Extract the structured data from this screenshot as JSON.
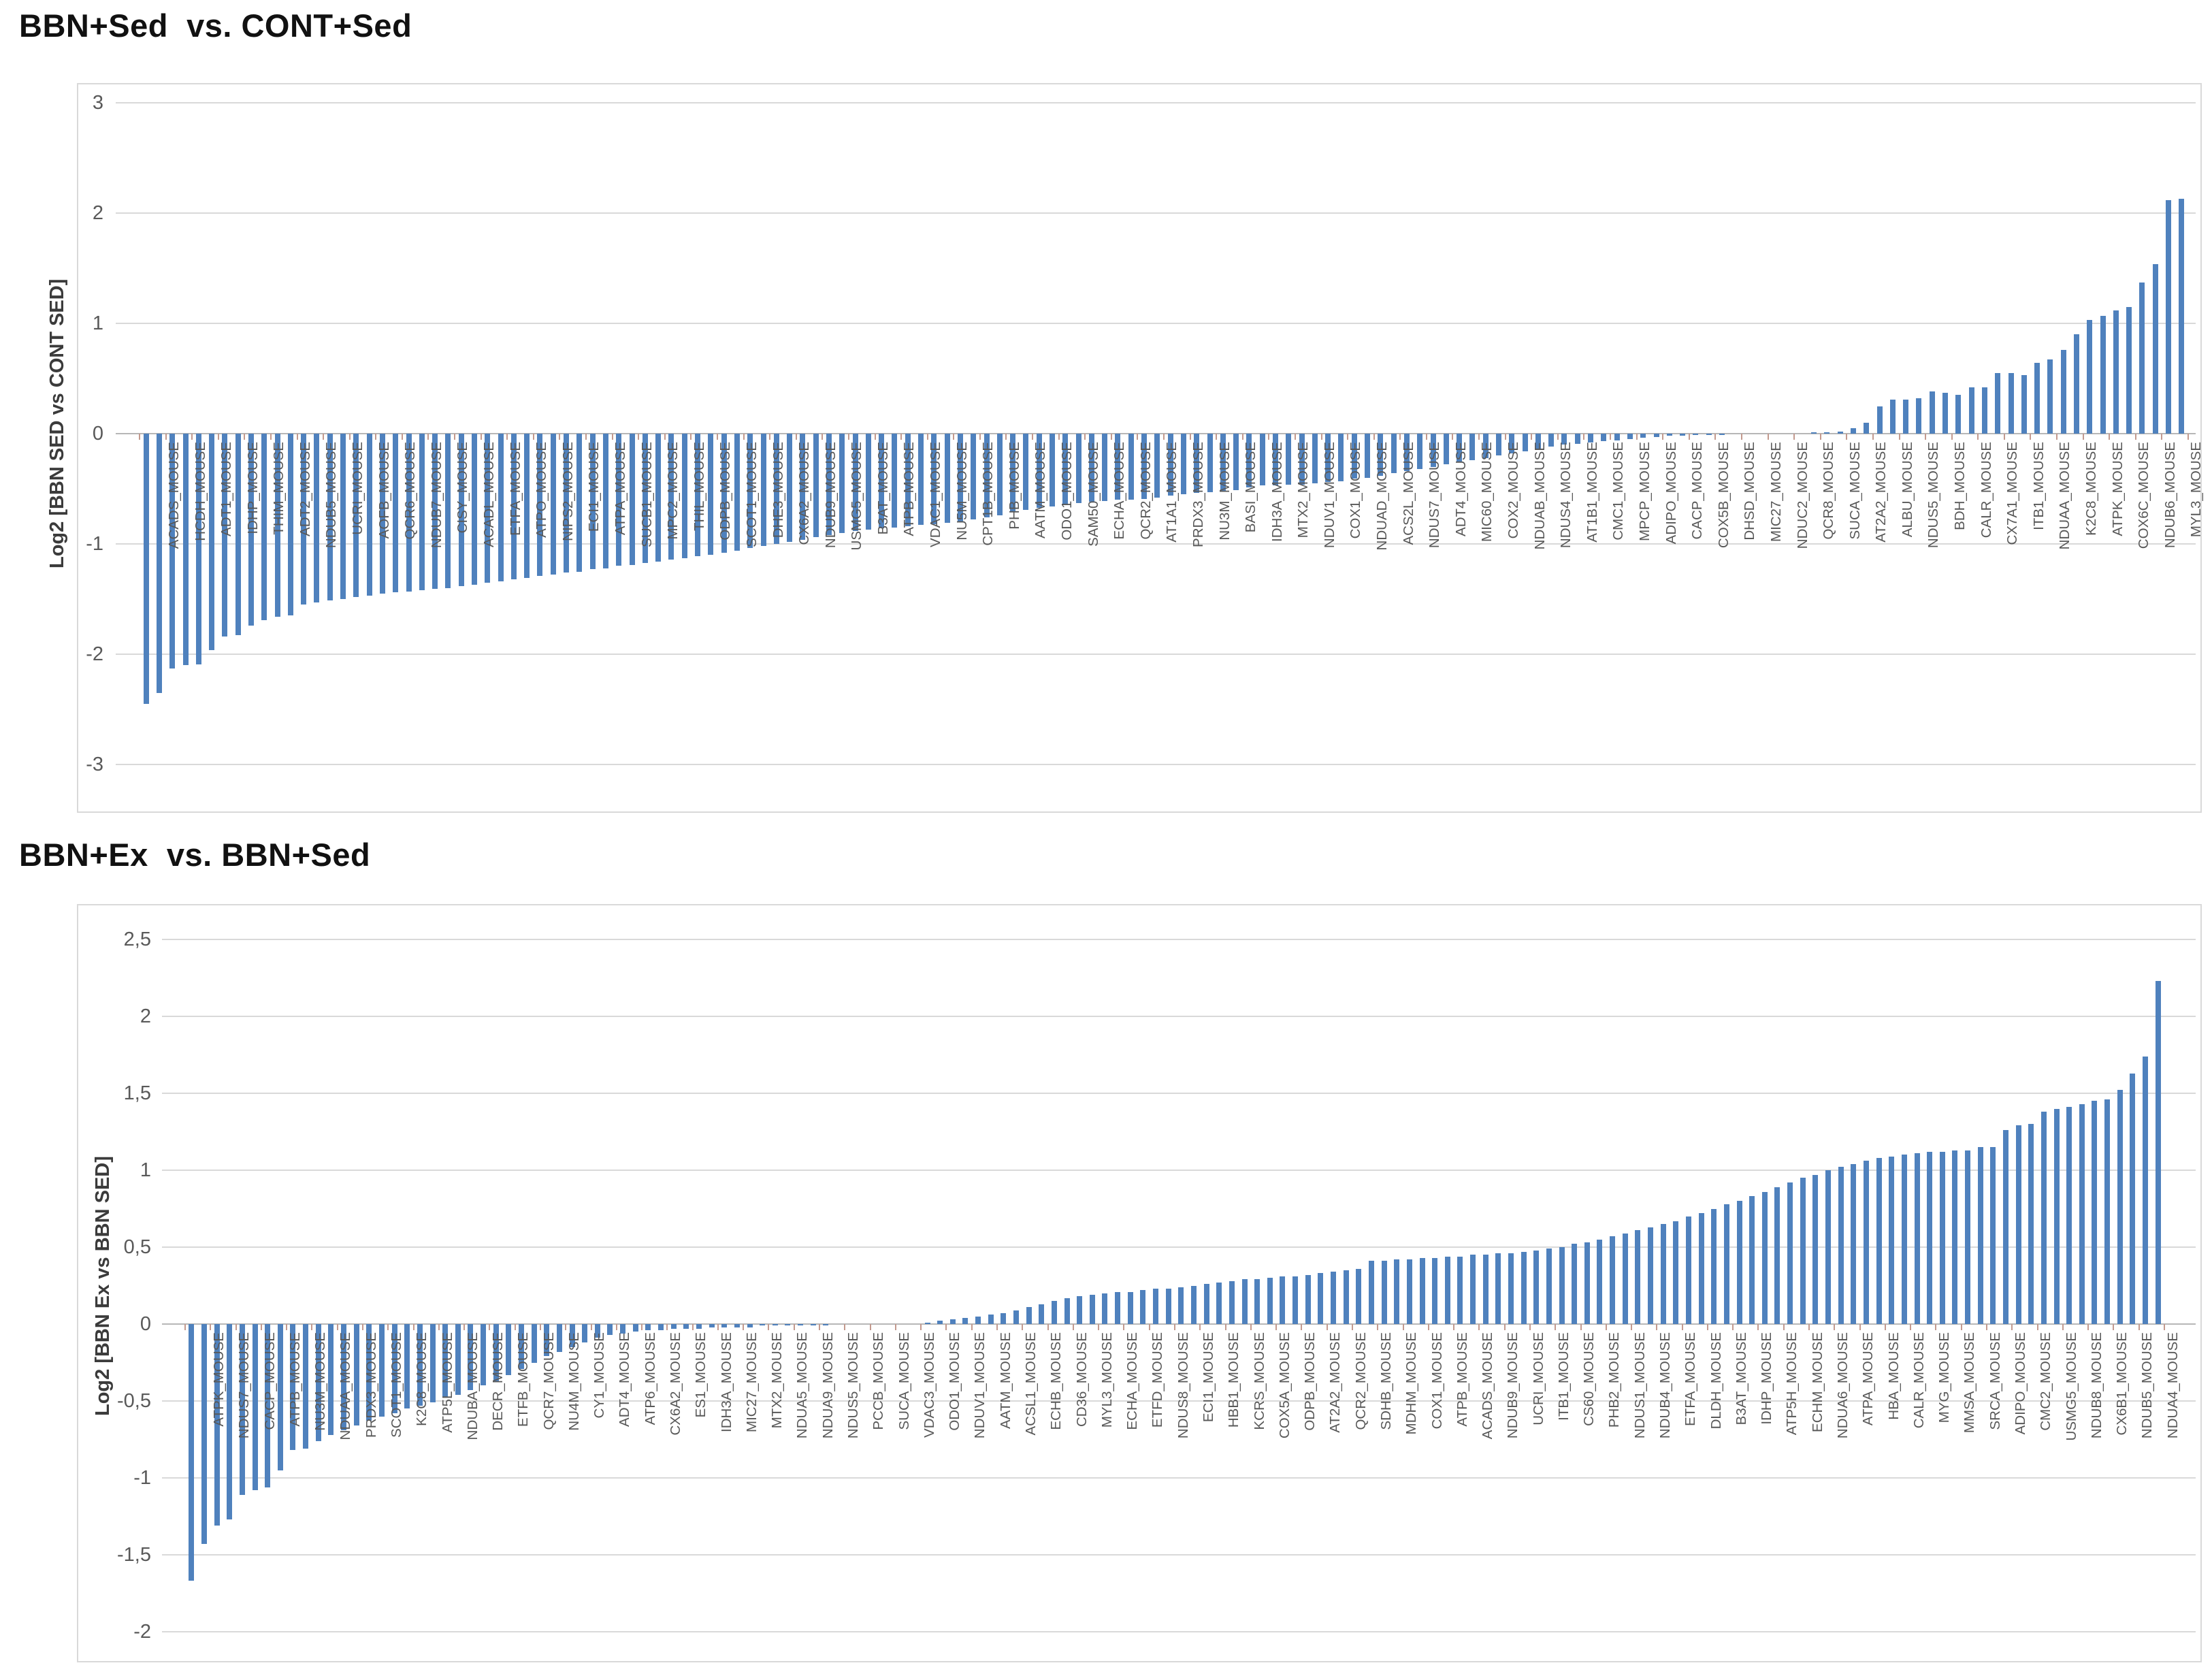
{
  "chart_data": [
    {
      "type": "bar",
      "title": "BBN+Sed  vs. CONT+Sed",
      "ylabel": "Log2 [BBN SED vs  CONT SED]",
      "xlabel": "",
      "ylim": [
        -3,
        3
      ],
      "grid": true,
      "legend": "none",
      "bar_color": "#4f81bd",
      "label_color": "#595959",
      "decimal_separator": ".",
      "labels_on_alternate_bars": true,
      "y_ticks": [
        {
          "label": "3",
          "v": 3
        },
        {
          "label": "2",
          "v": 2
        },
        {
          "label": "1",
          "v": 1
        },
        {
          "label": "0",
          "v": 0
        },
        {
          "label": "-1",
          "v": -1
        },
        {
          "label": "-2",
          "v": -2
        },
        {
          "label": "-3",
          "v": -3
        }
      ],
      "categories": [
        "ACADS_MOUSE",
        "HCDH_MOUSE",
        "ADT1_MOUSE",
        "IDHP_MOUSE",
        "THIM_MOUSE",
        "ADT2_MOUSE",
        "NDUB5_MOUSE",
        "UCRI_MOUSE",
        "AOFB_MOUSE",
        "QCR6_MOUSE",
        "NDUB7_MOUSE",
        "CISY_MOUSE",
        "ACADL_MOUSE",
        "ETFA_MOUSE",
        "ATPO_MOUSE",
        "NIPS2_MOUSE",
        "ECI1_MOUSE",
        "ATPA_MOUSE",
        "SUCB1_MOUSE",
        "MPC2_MOUSE",
        "THIL_MOUSE",
        "ODPB_MOUSE",
        "SCOT1_MOUSE",
        "DHE3_MOUSE",
        "CX6A2_MOUSE",
        "NDUB9_MOUSE",
        "USMG5_MOUSE",
        "B3AT_MOUSE",
        "ATPB_MOUSE",
        "VDAC1_MOUSE",
        "NU5M_MOUSE",
        "CPT1B_MOUSE",
        "PHB_MOUSE",
        "AATM_MOUSE",
        "ODO1_MOUSE",
        "SAM50_MOUSE",
        "ECHA_MOUSE",
        "QCR2_MOUSE",
        "AT1A1_MOUSE",
        "PRDX3_MOUSE",
        "NU3M_MOUSE",
        "BASI_MOUSE",
        "IDH3A_MOUSE",
        "MTX2_MOUSE",
        "NDUV1_MOUSE",
        "COX1_MOUSE",
        "NDUAD_MOUSE",
        "ACS2L_MOUSE",
        "NDUS7_MOUSE",
        "ADT4_MOUSE",
        "MIC60_MOUSE",
        "COX2_MOUSE",
        "NDUAB_MOUSE",
        "NDUS4_MOUSE",
        "AT1B1_MOUSE",
        "CMC1_MOUSE",
        "MPCP_MOUSE",
        "ADIPO_MOUSE",
        "CACP_MOUSE",
        "COX5B_MOUSE",
        "DHSD_MOUSE",
        "MIC27_MOUSE",
        "NDUC2_MOUSE",
        "QCR8_MOUSE",
        "SUCA_MOUSE",
        "AT2A2_MOUSE",
        "ALBU_MOUSE",
        "NDUS5_MOUSE",
        "BDH_MOUSE",
        "CALR_MOUSE",
        "CX7A1_MOUSE",
        "ITB1_MOUSE",
        "NDUAA_MOUSE",
        "K2C8_MOUSE",
        "ATPK_MOUSE",
        "COX6C_MOUSE",
        "NDUB6_MOUSE",
        "MYL3_MOUSE"
      ],
      "values": [
        -2.45,
        -2.35,
        -2.13,
        -2.1,
        -2.09,
        -1.96,
        -1.84,
        -1.83,
        -1.74,
        -1.69,
        -1.66,
        -1.65,
        -1.55,
        -1.53,
        -1.51,
        -1.5,
        -1.48,
        -1.47,
        -1.45,
        -1.44,
        -1.43,
        -1.42,
        -1.41,
        -1.4,
        -1.38,
        -1.37,
        -1.35,
        -1.34,
        -1.32,
        -1.31,
        -1.29,
        -1.28,
        -1.26,
        -1.25,
        -1.23,
        -1.22,
        -1.2,
        -1.19,
        -1.17,
        -1.16,
        -1.14,
        -1.13,
        -1.11,
        -1.1,
        -1.08,
        -1.06,
        -1.04,
        -1.02,
        -1.0,
        -0.98,
        -0.96,
        -0.94,
        -0.92,
        -0.9,
        -0.88,
        -0.87,
        -0.86,
        -0.85,
        -0.84,
        -0.83,
        -0.82,
        -0.81,
        -0.8,
        -0.78,
        -0.76,
        -0.74,
        -0.71,
        -0.69,
        -0.67,
        -0.66,
        -0.65,
        -0.63,
        -0.62,
        -0.61,
        -0.6,
        -0.6,
        -0.59,
        -0.58,
        -0.56,
        -0.55,
        -0.54,
        -0.53,
        -0.52,
        -0.51,
        -0.49,
        -0.47,
        -0.47,
        -0.46,
        -0.46,
        -0.45,
        -0.44,
        -0.43,
        -0.41,
        -0.4,
        -0.38,
        -0.36,
        -0.34,
        -0.32,
        -0.3,
        -0.28,
        -0.26,
        -0.24,
        -0.22,
        -0.2,
        -0.18,
        -0.16,
        -0.14,
        -0.12,
        -0.1,
        -0.09,
        -0.08,
        -0.07,
        -0.06,
        -0.05,
        -0.04,
        -0.03,
        -0.02,
        -0.02,
        -0.01,
        -0.01,
        -0.01,
        0,
        0,
        0,
        0,
        0,
        0,
        0.01,
        0.01,
        0.02,
        0.05,
        0.1,
        0.25,
        0.31,
        0.31,
        0.32,
        0.38,
        0.37,
        0.35,
        0.42,
        0.42,
        0.55,
        0.55,
        0.53,
        0.64,
        0.67,
        0.76,
        0.9,
        1.03,
        1.07,
        1.12,
        1.15,
        1.37,
        1.54,
        2.12,
        2.13
      ]
    },
    {
      "type": "bar",
      "title": "BBN+Ex  vs. BBN+Sed",
      "ylabel": "Log2 [BBN Ex vs BBN SED]",
      "xlabel": "",
      "ylim": [
        -2,
        2.5
      ],
      "grid": true,
      "legend": "none",
      "bar_color": "#4f81bd",
      "label_color": "#595959",
      "decimal_separator": ",",
      "labels_on_alternate_bars": true,
      "y_ticks": [
        {
          "label": "2,5",
          "v": 2.5
        },
        {
          "label": "2",
          "v": 2
        },
        {
          "label": "1,5",
          "v": 1.5
        },
        {
          "label": "1",
          "v": 1
        },
        {
          "label": "0,5",
          "v": 0.5
        },
        {
          "label": "0",
          "v": 0
        },
        {
          "label": "-0,5",
          "v": -0.5
        },
        {
          "label": "-1",
          "v": -1
        },
        {
          "label": "-1,5",
          "v": -1.5
        },
        {
          "label": "-2",
          "v": -2
        }
      ],
      "categories": [
        "ATPK_MOUSE",
        "NDUS7_MOUSE",
        "CACP_MOUSE",
        "ATPB_MOUSE",
        "NU3M_MOUSE",
        "NDUAA_MOUSE",
        "PRDX3_MOUSE",
        "SCOT1_MOUSE",
        "K2C8_MOUSE",
        "ATP5L_MOUSE",
        "NDUBA_MOUSE",
        "DECR_MOUSE",
        "ETFB_MOUSE",
        "QCR7_MOUSE",
        "NU4M_MOUSE",
        "CY1_MOUSE",
        "ADT4_MOUSE",
        "ATP6_MOUSE",
        "CX6A2_MOUSE",
        "ES1_MOUSE",
        "IDH3A_MOUSE",
        "MIC27_MOUSE",
        "MTX2_MOUSE",
        "NDUA5_MOUSE",
        "NDUA9_MOUSE",
        "NDUS5_MOUSE",
        "PCCB_MOUSE",
        "SUCA_MOUSE",
        "VDAC3_MOUSE",
        "ODO1_MOUSE",
        "NDUV1_MOUSE",
        "AATM_MOUSE",
        "ACSL1_MOUSE",
        "ECHB_MOUSE",
        "CD36_MOUSE",
        "MYL3_MOUSE",
        "ECHA_MOUSE",
        "ETFD_MOUSE",
        "NDUS8_MOUSE",
        "ECI1_MOUSE",
        "HBB1_MOUSE",
        "KCRS_MOUSE",
        "COX5A_MOUSE",
        "ODPB_MOUSE",
        "AT2A2_MOUSE",
        "QCR2_MOUSE",
        "SDHB_MOUSE",
        "MDHM_MOUSE",
        "COX1_MOUSE",
        "ATPB_MOUSE",
        "ACADS_MOUSE",
        "NDUB9_MOUSE",
        "UCRI_MOUSE",
        "ITB1_MOUSE",
        "CS60_MOUSE",
        "PHB2_MOUSE",
        "NDUS1_MOUSE",
        "NDUB4_MOUSE",
        "ETFA_MOUSE",
        "DLDH_MOUSE",
        "B3AT_MOUSE",
        "IDHP_MOUSE",
        "ATP5H_MOUSE",
        "ECHM_MOUSE",
        "NDUA6_MOUSE",
        "ATPA_MOUSE",
        "HBA_MOUSE",
        "CALR_MOUSE",
        "MYG_MOUSE",
        "MMSA_MOUSE",
        "SRCA_MOUSE",
        "ADIPO_MOUSE",
        "CMC2_MOUSE",
        "USMG5_MOUSE",
        "NDUB8_MOUSE",
        "CX6B1_MOUSE",
        "NDUB5_MOUSE",
        "NDUA4_MOUSE"
      ],
      "values": [
        -1.67,
        -1.43,
        -1.31,
        -1.27,
        -1.11,
        -1.08,
        -1.06,
        -0.95,
        -0.82,
        -0.81,
        -0.76,
        -0.72,
        -0.69,
        -0.66,
        -0.63,
        -0.6,
        -0.58,
        -0.55,
        -0.53,
        -0.51,
        -0.48,
        -0.46,
        -0.43,
        -0.4,
        -0.37,
        -0.33,
        -0.29,
        -0.25,
        -0.21,
        -0.18,
        -0.15,
        -0.12,
        -0.09,
        -0.07,
        -0.06,
        -0.05,
        -0.04,
        -0.04,
        -0.03,
        -0.03,
        -0.03,
        -0.02,
        -0.02,
        -0.02,
        -0.02,
        -0.01,
        -0.01,
        -0.01,
        -0.01,
        -0.01,
        -0.01,
        0,
        0,
        0,
        0,
        0,
        0,
        0,
        0.01,
        0.02,
        0.03,
        0.04,
        0.05,
        0.06,
        0.07,
        0.09,
        0.11,
        0.13,
        0.15,
        0.17,
        0.18,
        0.19,
        0.2,
        0.21,
        0.21,
        0.22,
        0.23,
        0.23,
        0.24,
        0.25,
        0.26,
        0.27,
        0.28,
        0.29,
        0.29,
        0.3,
        0.31,
        0.31,
        0.32,
        0.33,
        0.34,
        0.35,
        0.36,
        0.41,
        0.41,
        0.42,
        0.42,
        0.43,
        0.43,
        0.44,
        0.44,
        0.45,
        0.45,
        0.46,
        0.46,
        0.47,
        0.48,
        0.49,
        0.5,
        0.52,
        0.53,
        0.55,
        0.57,
        0.59,
        0.61,
        0.63,
        0.65,
        0.67,
        0.7,
        0.72,
        0.75,
        0.78,
        0.8,
        0.83,
        0.86,
        0.89,
        0.92,
        0.95,
        0.97,
        1.0,
        1.02,
        1.04,
        1.06,
        1.08,
        1.09,
        1.1,
        1.11,
        1.12,
        1.12,
        1.13,
        1.13,
        1.15,
        1.15,
        1.26,
        1.29,
        1.3,
        1.38,
        1.4,
        1.41,
        1.43,
        1.45,
        1.46,
        1.52,
        1.63,
        1.74,
        2.23
      ]
    }
  ]
}
